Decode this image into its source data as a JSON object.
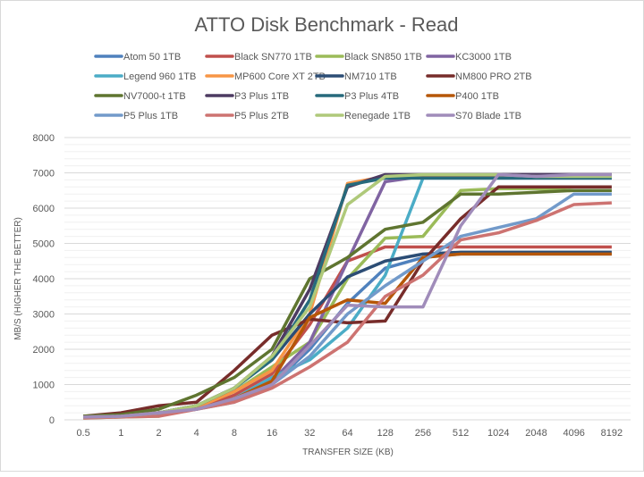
{
  "chart_data": {
    "type": "line",
    "title": "ATTO Disk Benchmark - Read",
    "xlabel": "TRANSFER SIZE (KB)",
    "ylabel": "MB/S (HIGHER THE BETTER)",
    "ylim": [
      0,
      8000
    ],
    "yticks": [
      "0",
      "1000",
      "2000",
      "3000",
      "4000",
      "5000",
      "6000",
      "7000",
      "8000"
    ],
    "grid": true,
    "legend": "top",
    "categories": [
      "0.5",
      "1",
      "2",
      "4",
      "8",
      "16",
      "32",
      "64",
      "128",
      "256",
      "512",
      "1024",
      "2048",
      "4096",
      "8192"
    ],
    "series": [
      {
        "name": "Atom 50 1TB",
        "color": "#4F81BD",
        "values": [
          80,
          100,
          200,
          300,
          600,
          1000,
          2000,
          3300,
          4300,
          4600,
          4700,
          4700,
          4700,
          4700,
          4700
        ]
      },
      {
        "name": "Black SN770 1TB",
        "color": "#C0504D",
        "values": [
          80,
          100,
          200,
          300,
          700,
          1300,
          2700,
          4500,
          4900,
          4900,
          4900,
          4900,
          4900,
          4900,
          4900
        ]
      },
      {
        "name": "Black SN850 1TB",
        "color": "#9BBB59",
        "values": [
          50,
          80,
          100,
          400,
          800,
          1500,
          2200,
          4000,
          5150,
          5200,
          6500,
          6550,
          6550,
          6500,
          6500
        ]
      },
      {
        "name": "KC3000 1TB",
        "color": "#8064A2",
        "values": [
          80,
          100,
          200,
          300,
          600,
          1100,
          2200,
          4500,
          6750,
          6900,
          6950,
          6950,
          6950,
          6950,
          6950
        ]
      },
      {
        "name": "Legend 960 1TB",
        "color": "#4BACC6",
        "values": [
          80,
          100,
          200,
          300,
          600,
          1200,
          1700,
          2600,
          4100,
          6850,
          6850,
          6850,
          6850,
          6850,
          6850
        ]
      },
      {
        "name": "MP600 Core XT 2TB",
        "color": "#F79646",
        "values": [
          80,
          100,
          200,
          350,
          800,
          1400,
          3000,
          6700,
          6900,
          6900,
          6900,
          6900,
          6900,
          6900,
          6900
        ]
      },
      {
        "name": "NM710 1TB",
        "color": "#2C4D75",
        "values": [
          80,
          100,
          200,
          400,
          900,
          1700,
          3000,
          4050,
          4500,
          4700,
          4750,
          4750,
          4750,
          4750,
          4750
        ]
      },
      {
        "name": "NM800 PRO 2TB",
        "color": "#772C2A",
        "values": [
          100,
          200,
          400,
          500,
          1400,
          2400,
          2850,
          2750,
          2800,
          4500,
          5700,
          6600,
          6600,
          6600,
          6600
        ]
      },
      {
        "name": "NV7000-t 1TB",
        "color": "#5F7530",
        "values": [
          100,
          150,
          300,
          700,
          1200,
          2000,
          4000,
          4600,
          5400,
          5600,
          6400,
          6400,
          6450,
          6500,
          6500
        ]
      },
      {
        "name": "P3 Plus 1TB",
        "color": "#4D3B62",
        "values": [
          80,
          100,
          200,
          400,
          900,
          1800,
          3700,
          6600,
          6950,
          6950,
          6950,
          6950,
          6950,
          6950,
          6950
        ]
      },
      {
        "name": "P3 Plus 4TB",
        "color": "#276A7C",
        "values": [
          80,
          100,
          200,
          400,
          900,
          1700,
          3400,
          6650,
          6850,
          6850,
          6850,
          6850,
          6850,
          6850,
          6850
        ]
      },
      {
        "name": "P400 1TB",
        "color": "#B65708",
        "values": [
          80,
          100,
          200,
          300,
          600,
          1100,
          2900,
          3400,
          3300,
          4600,
          4700,
          4700,
          4700,
          4700,
          4700
        ]
      },
      {
        "name": "P5 Plus 1TB",
        "color": "#729ACA",
        "values": [
          80,
          100,
          150,
          300,
          500,
          1000,
          1800,
          3000,
          3800,
          4500,
          5200,
          5450,
          5700,
          6400,
          6400
        ]
      },
      {
        "name": "P5 Plus 2TB",
        "color": "#CD7371",
        "values": [
          50,
          80,
          100,
          300,
          500,
          900,
          1500,
          2200,
          3500,
          4100,
          5100,
          5300,
          5650,
          6100,
          6150
        ]
      },
      {
        "name": "Renegade 1TB",
        "color": "#AFC97A",
        "values": [
          80,
          100,
          200,
          400,
          900,
          1800,
          3200,
          6100,
          6900,
          6950,
          6950,
          6950,
          6900,
          6900,
          6900
        ]
      },
      {
        "name": "S70 Blade 1TB",
        "color": "#A08CBA",
        "values": [
          80,
          100,
          200,
          300,
          600,
          1000,
          2100,
          3250,
          3200,
          3200,
          5500,
          6950,
          6900,
          6950,
          6950
        ]
      }
    ]
  }
}
